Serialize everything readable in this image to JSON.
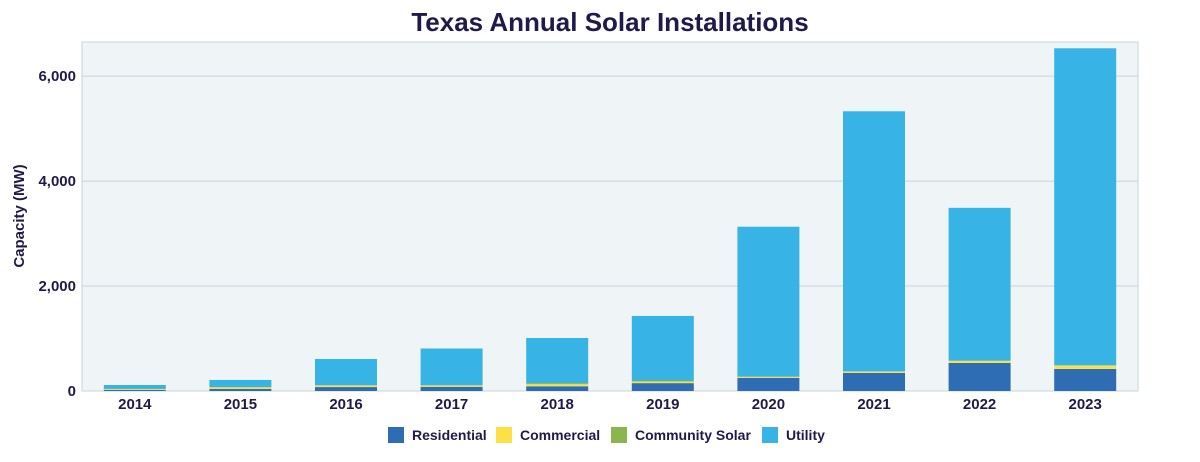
{
  "chart_data": {
    "type": "bar",
    "stacked": true,
    "title": "Texas Annual Solar Installations",
    "xlabel": "",
    "ylabel": "Capacity (MW)",
    "ylim": [
      0,
      6650
    ],
    "yticks": [
      0,
      2000,
      4000,
      6000
    ],
    "ytick_labels": [
      "0",
      "2,000",
      "4,000",
      "6,000"
    ],
    "grid": true,
    "legend_position": "bottom",
    "categories": [
      "2014",
      "2015",
      "2016",
      "2017",
      "2018",
      "2019",
      "2020",
      "2021",
      "2022",
      "2023"
    ],
    "series": [
      {
        "name": "Residential",
        "color": "#2e6db4",
        "values": [
          20,
          40,
          75,
          80,
          90,
          150,
          250,
          345,
          535,
          420
        ]
      },
      {
        "name": "Commercial",
        "color": "#fde047",
        "values": [
          15,
          30,
          30,
          25,
          40,
          30,
          20,
          25,
          40,
          65
        ]
      },
      {
        "name": "Community Solar",
        "color": "#8bb64f",
        "values": [
          5,
          5,
          5,
          5,
          20,
          20,
          5,
          5,
          5,
          5
        ]
      },
      {
        "name": "Utility",
        "color": "#38b3e6",
        "values": [
          75,
          135,
          500,
          700,
          860,
          1230,
          2855,
          4955,
          2910,
          6040
        ]
      }
    ]
  }
}
